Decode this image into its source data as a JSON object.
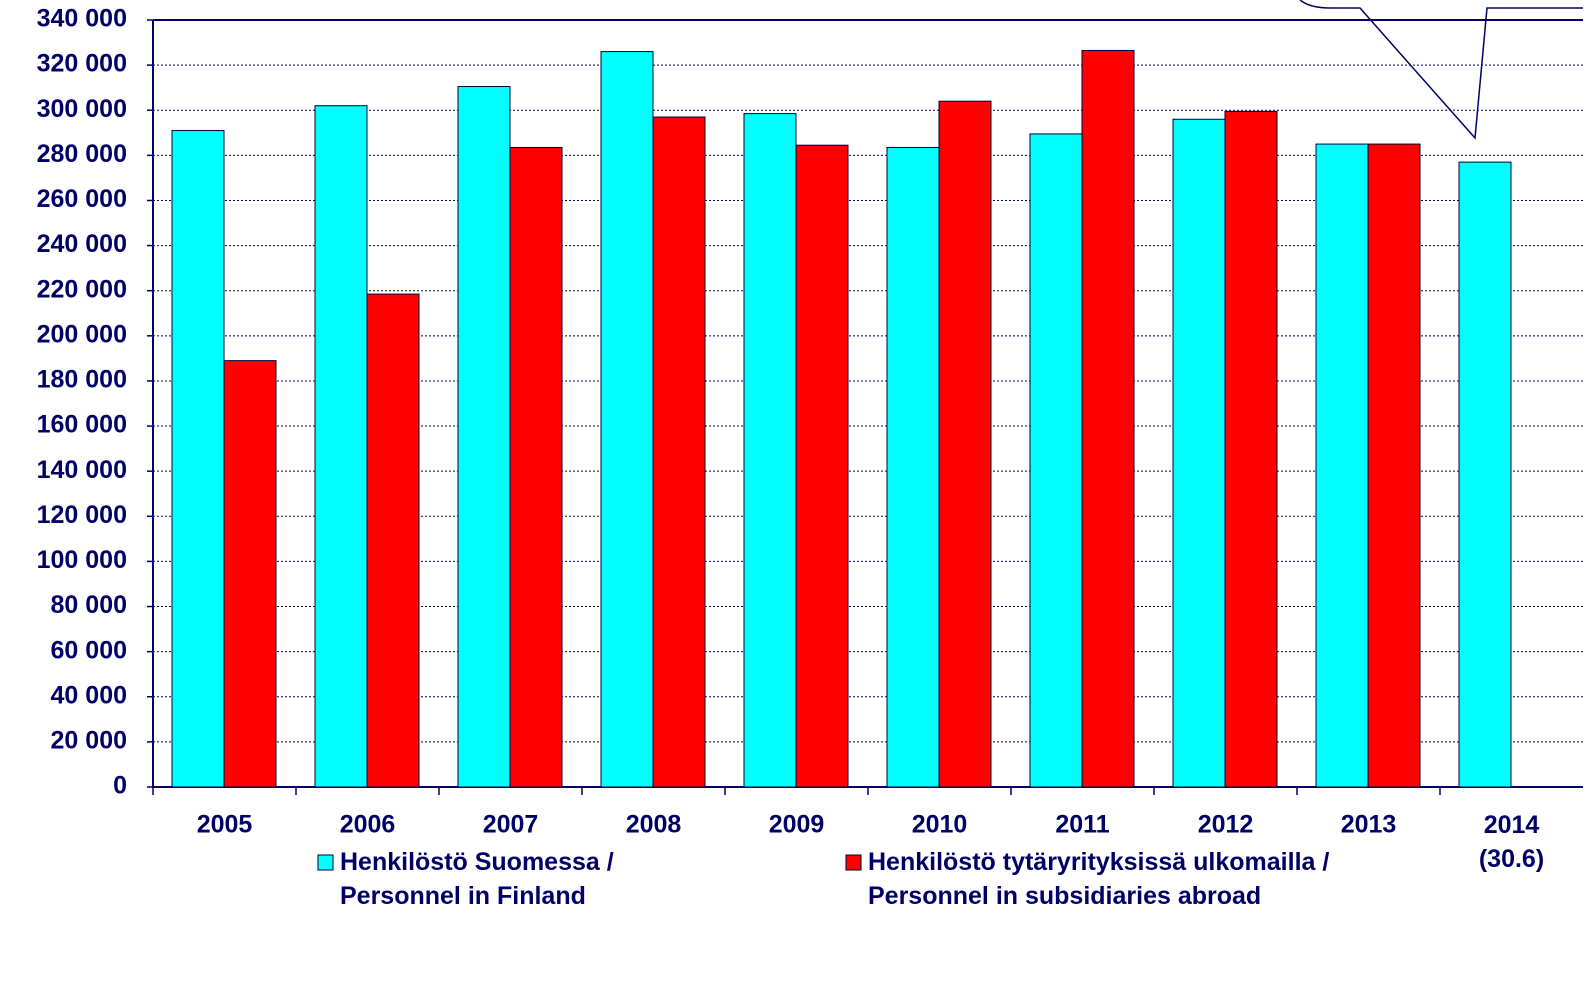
{
  "chart_data": {
    "type": "bar",
    "categories": [
      "2005",
      "2006",
      "2007",
      "2008",
      "2009",
      "2010",
      "2011",
      "2012",
      "2013",
      "2014\n(30.6)"
    ],
    "series": [
      {
        "name": "Henkilöstö Suomessa /\nPersonnel in Finland",
        "color": "#00ffff",
        "values": [
          291000,
          302000,
          310500,
          326000,
          298500,
          283500,
          289500,
          296000,
          285000,
          277000
        ]
      },
      {
        "name": "Henkilöstö tytäryrityksissä ulkomailla /\nPersonnel in subsidiaries abroad",
        "color": "#ff0000",
        "values": [
          189000,
          218500,
          283500,
          297000,
          284500,
          304000,
          326500,
          299500,
          285000,
          null
        ]
      }
    ],
    "ylim": [
      0,
      340000
    ],
    "yticks": [
      {
        "value": 0,
        "label": "0"
      },
      {
        "value": 20000,
        "label": "20 000"
      },
      {
        "value": 40000,
        "label": "40 000"
      },
      {
        "value": 60000,
        "label": "60 000"
      },
      {
        "value": 80000,
        "label": "80 000"
      },
      {
        "value": 100000,
        "label": "100 000"
      },
      {
        "value": 120000,
        "label": "120 000"
      },
      {
        "value": 140000,
        "label": "140 000"
      },
      {
        "value": 160000,
        "label": "160 000"
      },
      {
        "value": 180000,
        "label": "180 000"
      },
      {
        "value": 200000,
        "label": "200 000"
      },
      {
        "value": 220000,
        "label": "220 000"
      },
      {
        "value": 240000,
        "label": "240 000"
      },
      {
        "value": 260000,
        "label": "260 000"
      },
      {
        "value": 280000,
        "label": "280 000"
      },
      {
        "value": 300000,
        "label": "300 000"
      },
      {
        "value": 320000,
        "label": "320 000"
      },
      {
        "value": 340000,
        "label": "340 000"
      }
    ],
    "grid": true
  }
}
